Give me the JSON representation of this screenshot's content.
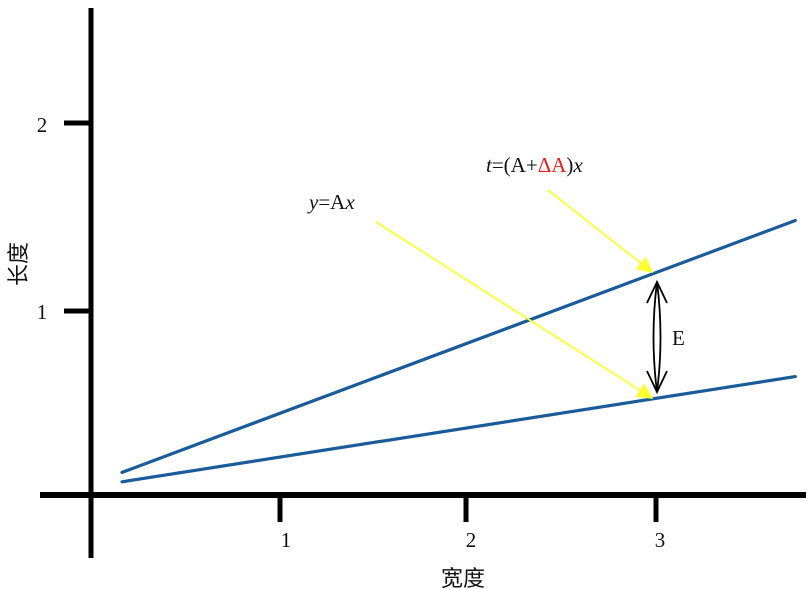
{
  "chart_data": {
    "type": "line",
    "xlabel": "宽度",
    "ylabel": "长度",
    "x_ticks": [
      "1",
      "2",
      "3"
    ],
    "y_ticks": [
      "1",
      "2"
    ],
    "xlim": [
      -0.15,
      3.75
    ],
    "ylim": [
      0,
      2.5
    ],
    "grid": false,
    "series": [
      {
        "x": [
          0.15,
          3.75
        ],
        "y": [
          0.12,
          1.46
        ]
      },
      {
        "x": [
          0.15,
          3.75
        ],
        "y": [
          0.07,
          0.63
        ]
      }
    ],
    "annotations": {
      "upper_line": {
        "italic": "t",
        "text_a": "=(A+",
        "text_red": "ΔA",
        "text_b": ")",
        "text_c": "x",
        "target": [
          3.0,
          1.19
        ]
      },
      "lower_line": {
        "italic": "y",
        "text_a": "=A",
        "text_c": "x",
        "target": [
          3.0,
          0.52
        ]
      },
      "gap": {
        "text": "E",
        "x": 3.0,
        "y_top": 1.19,
        "y_bottom": 0.52
      }
    },
    "colors": {
      "line": "#1a5c9a",
      "arrow": "#ffff33",
      "axis": "#000000",
      "delta": "#e02020"
    }
  }
}
